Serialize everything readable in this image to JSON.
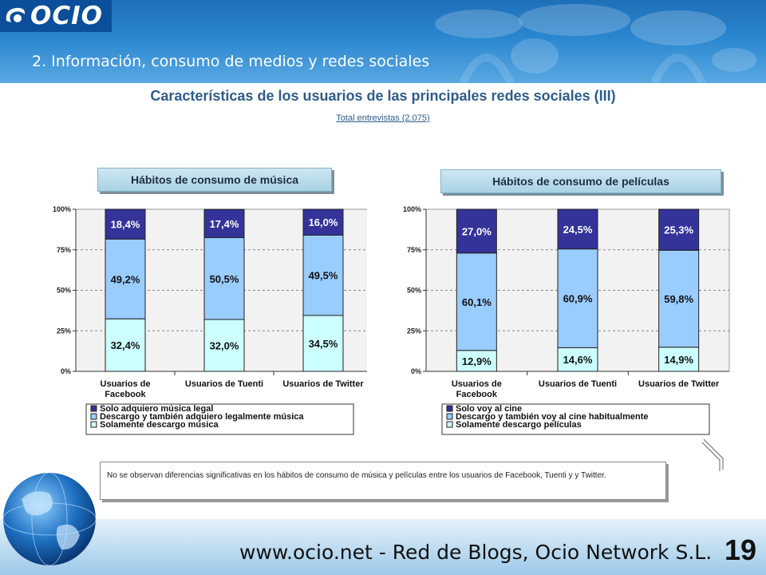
{
  "header": {
    "logo": "OCIO",
    "section": "2. Información, consumo de medios y redes sociales"
  },
  "title": "Características de los usuarios de las principales redes sociales (III)",
  "subtitle": "Total entrevistas (2.075)",
  "panels": [
    {
      "title": "Hábitos de consumo de música"
    },
    {
      "title": "Hábitos de consumo de películas"
    }
  ],
  "chart_data": [
    {
      "type": "bar",
      "stacked": true,
      "title": "Hábitos de consumo de música",
      "categories": [
        [
          "Usuarios de",
          "Facebook"
        ],
        [
          "Usuarios de Tuenti"
        ],
        [
          "Usuarios de Twitter"
        ]
      ],
      "y_ticks": [
        "0%",
        "25%",
        "50%",
        "75%",
        "100%"
      ],
      "ylim": [
        0,
        100
      ],
      "series": [
        {
          "name": "Solamente descargo música",
          "color": "#ccffff",
          "values": [
            32.4,
            32.0,
            34.5
          ],
          "labels": [
            "32,4%",
            "32,0%",
            "34,5%"
          ]
        },
        {
          "name": "Descargo y también adquiero legalmente música",
          "color": "#99ccff",
          "values": [
            49.2,
            50.5,
            49.5
          ],
          "labels": [
            "49,2%",
            "50,5%",
            "49,5%"
          ]
        },
        {
          "name": "Solo adquiero música legal",
          "color": "#333399",
          "values": [
            18.4,
            17.4,
            16.0
          ],
          "labels": [
            "18,4%",
            "17,4%",
            "16,0%"
          ]
        }
      ],
      "legend": [
        "Solo adquiero música legal",
        "Descargo y también adquiero legalmente música",
        "Solamente descargo música"
      ]
    },
    {
      "type": "bar",
      "stacked": true,
      "title": "Hábitos de consumo de películas",
      "categories": [
        [
          "Usuarios de",
          "Facebook"
        ],
        [
          "Usuarios de Tuenti"
        ],
        [
          "Usuarios de Twitter"
        ]
      ],
      "y_ticks": [
        "0%",
        "25%",
        "50%",
        "75%",
        "100%"
      ],
      "ylim": [
        0,
        100
      ],
      "series": [
        {
          "name": "Solamente descargo películas",
          "color": "#ccffff",
          "values": [
            12.9,
            14.6,
            14.9
          ],
          "labels": [
            "12,9%",
            "14,6%",
            "14,9%"
          ]
        },
        {
          "name": "Descargo y también voy al cine habitualmente",
          "color": "#99ccff",
          "values": [
            60.1,
            60.9,
            59.8
          ],
          "labels": [
            "60,1%",
            "60,9%",
            "59,8%"
          ]
        },
        {
          "name": "Solo voy al cine",
          "color": "#333399",
          "values": [
            27.0,
            24.5,
            25.3
          ],
          "labels": [
            "27,0%",
            "24,5%",
            "25,3%"
          ]
        }
      ],
      "legend": [
        "Solo voy al cine",
        "Descargo y también voy al cine habitualmente",
        "Solamente descargo películas"
      ]
    }
  ],
  "note": "No se observan diferencias significativas en los hábitos de consumo de música y películas entre los usuarios de Facebook, Tuenti y y Twitter.",
  "footer": {
    "site": "www.ocio.net - Red de Blogs, Ocio Network S.L.",
    "page": "19"
  }
}
